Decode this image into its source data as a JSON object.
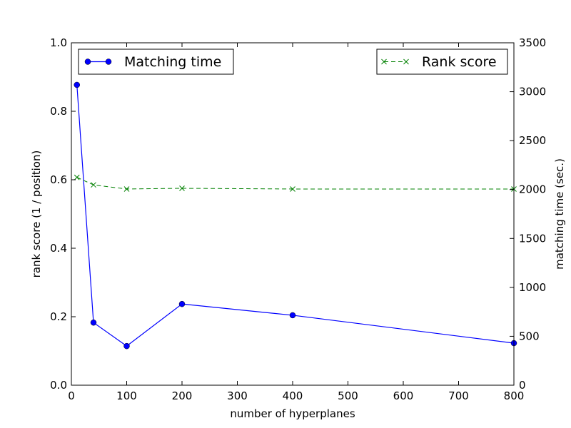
{
  "chart_data": {
    "type": "line",
    "x": [
      10,
      40,
      100,
      200,
      400,
      800
    ],
    "xlabel": "number of hyperplanes",
    "xlim": [
      0,
      800
    ],
    "x_ticks": [
      "0",
      "100",
      "200",
      "300",
      "400",
      "500",
      "600",
      "700",
      "800"
    ],
    "x_tick_values": [
      0,
      100,
      200,
      300,
      400,
      500,
      600,
      700,
      800
    ],
    "left_axis": {
      "label": "rank score (1 / position)",
      "lim": [
        0,
        1
      ],
      "ticks": [
        "0.0",
        "0.2",
        "0.4",
        "0.6",
        "0.8",
        "1.0"
      ],
      "tick_values": [
        0,
        0.2,
        0.4,
        0.6,
        0.8,
        1.0
      ]
    },
    "right_axis": {
      "label": "matching time (sec.)",
      "lim": [
        0,
        3500
      ],
      "ticks": [
        "0",
        "500",
        "1000",
        "1500",
        "2000",
        "2500",
        "3000",
        "3500"
      ],
      "tick_values": [
        0,
        500,
        1000,
        1500,
        2000,
        2500,
        3000,
        3500
      ]
    },
    "series": [
      {
        "name": "Matching time",
        "axis": "right",
        "color": "#0000ff",
        "marker": "circle",
        "linestyle": "solid",
        "legend_position": "upper-left",
        "values": [
          3070,
          640,
          400,
          830,
          715,
          430
        ]
      },
      {
        "name": "Rank score",
        "axis": "left",
        "color": "#008000",
        "marker": "x",
        "linestyle": "dashed",
        "legend_position": "upper-right",
        "values": [
          0.607,
          0.585,
          0.573,
          0.575,
          0.573,
          0.573
        ]
      }
    ],
    "grid": false
  }
}
